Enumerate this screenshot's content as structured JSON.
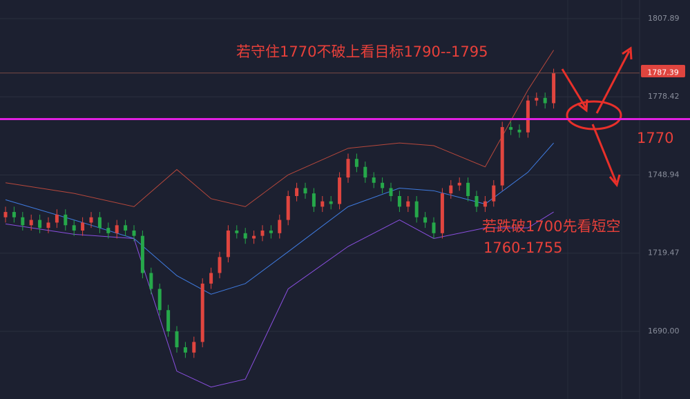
{
  "chart_data": {
    "type": "candlestick",
    "ylim": [
      1664.5,
      1814.9
    ],
    "yticks": [
      1807.89,
      1778.42,
      1748.94,
      1719.47,
      {
        "value": 1690,
        "label": "1690.00"
      }
    ],
    "grid": true,
    "up_color": "#e0453f",
    "down_color": "#26a84a",
    "open": [
      1733,
      1735,
      1733,
      1730,
      1732,
      1729,
      1731,
      1734,
      1730,
      1728,
      1731,
      1733,
      1729,
      1727,
      1730,
      1728,
      1726,
      1712,
      1706,
      1698,
      1690,
      1684,
      1682,
      1686,
      1708,
      1712,
      1718,
      1728,
      1727,
      1725,
      1726,
      1728,
      1727,
      1732,
      1741,
      1744,
      1742,
      1737,
      1739,
      1738,
      1748,
      1755,
      1752,
      1748,
      1746,
      1744,
      1741,
      1737,
      1739,
      1733,
      1731,
      1727,
      1742,
      1745,
      1746,
      1741,
      1737,
      1739,
      1745,
      1767,
      1766,
      1765,
      1777,
      1778,
      1776
    ],
    "high": [
      1737,
      1737,
      1735,
      1734,
      1734,
      1733,
      1736,
      1736,
      1732,
      1733,
      1735,
      1735,
      1731,
      1732,
      1732,
      1730,
      1728,
      1714,
      1708,
      1700,
      1692,
      1686,
      1688,
      1710,
      1714,
      1720,
      1730,
      1730,
      1729,
      1728,
      1730,
      1730,
      1734,
      1743,
      1746,
      1746,
      1744,
      1741,
      1741,
      1750,
      1757,
      1757,
      1754,
      1750,
      1748,
      1746,
      1743,
      1741,
      1741,
      1735,
      1733,
      1744,
      1747,
      1748,
      1748,
      1743,
      1741,
      1747,
      1769,
      1769,
      1768,
      1779,
      1780,
      1780,
      1789
    ],
    "low": [
      1731,
      1731,
      1728,
      1728,
      1727,
      1727,
      1729,
      1728,
      1726,
      1726,
      1729,
      1727,
      1725,
      1725,
      1726,
      1724,
      1710,
      1704,
      1696,
      1688,
      1682,
      1680,
      1680,
      1684,
      1706,
      1710,
      1716,
      1725,
      1723,
      1723,
      1724,
      1725,
      1725,
      1730,
      1739,
      1740,
      1735,
      1735,
      1736,
      1736,
      1746,
      1750,
      1746,
      1744,
      1742,
      1739,
      1735,
      1735,
      1731,
      1729,
      1725,
      1725,
      1740,
      1743,
      1739,
      1735,
      1735,
      1737,
      1743,
      1764,
      1763,
      1763,
      1775,
      1774,
      1774
    ],
    "close": [
      1735,
      1733,
      1730,
      1732,
      1729,
      1731,
      1734,
      1730,
      1728,
      1731,
      1733,
      1729,
      1727,
      1730,
      1728,
      1726,
      1712,
      1706,
      1698,
      1690,
      1684,
      1682,
      1686,
      1708,
      1712,
      1718,
      1728,
      1727,
      1725,
      1726,
      1728,
      1727,
      1732,
      1741,
      1744,
      1742,
      1737,
      1739,
      1738,
      1748,
      1755,
      1752,
      1748,
      1746,
      1744,
      1741,
      1737,
      1739,
      1733,
      1731,
      1727,
      1742,
      1745,
      1746,
      1741,
      1737,
      1739,
      1745,
      1767,
      1766,
      1765,
      1777,
      1778,
      1776,
      1787.39
    ],
    "bands": [
      {
        "color": "#b8483c",
        "x": [
          0,
          8,
          15,
          20,
          24,
          28,
          33,
          40,
          46,
          50,
          56,
          61,
          64
        ],
        "values": [
          1746,
          1742,
          1737,
          1751,
          1740,
          1737,
          1749,
          1759,
          1761,
          1760,
          1752,
          1781,
          1796
        ]
      },
      {
        "color": "#3f7be0",
        "x": [
          0,
          8,
          15,
          20,
          24,
          28,
          33,
          40,
          46,
          50,
          56,
          61,
          64
        ],
        "values": [
          1739.6,
          1732,
          1725,
          1711,
          1704,
          1708,
          1720,
          1737,
          1744,
          1743,
          1738,
          1750,
          1761
        ]
      },
      {
        "color": "#8a4fe0",
        "x": [
          0,
          8,
          15,
          20,
          24,
          28,
          33,
          40,
          46,
          50,
          56,
          61,
          64
        ],
        "values": [
          1730.5,
          1726.6,
          1725,
          1675,
          1669,
          1672,
          1706,
          1722,
          1732,
          1725,
          1729,
          1729,
          1735
        ]
      }
    ],
    "last_price": 1787.39,
    "level": 1770,
    "annotations": [
      "若守住1770不破上看目标1790--1795",
      "若跌破1700先看短空",
      "1760-1755",
      "1770"
    ]
  }
}
